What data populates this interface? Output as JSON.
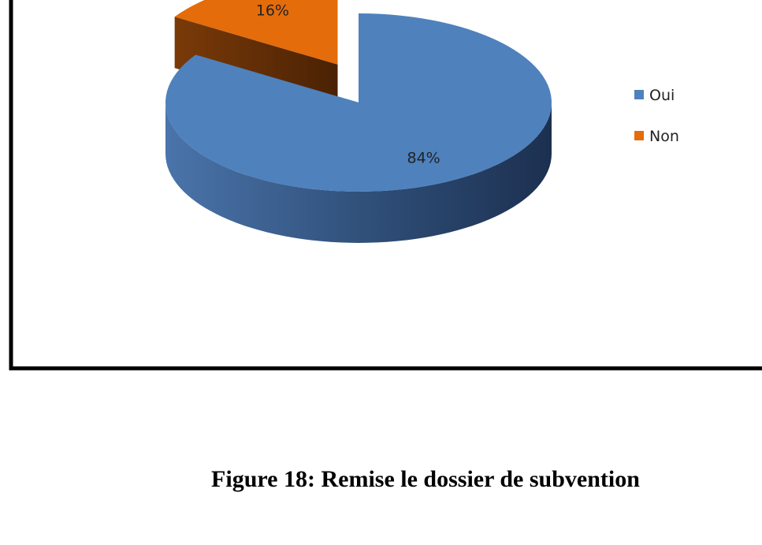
{
  "chart_data": {
    "type": "pie3d",
    "categories": [
      "Oui",
      "Non"
    ],
    "values": [
      84,
      16
    ],
    "value_labels": [
      "84%",
      "16%"
    ],
    "colors": [
      "#4f81bd",
      "#e46c0a"
    ],
    "exploded": [
      false,
      true
    ],
    "legend": "right",
    "caption": "Figure 18: Remise le dossier de subvention"
  }
}
